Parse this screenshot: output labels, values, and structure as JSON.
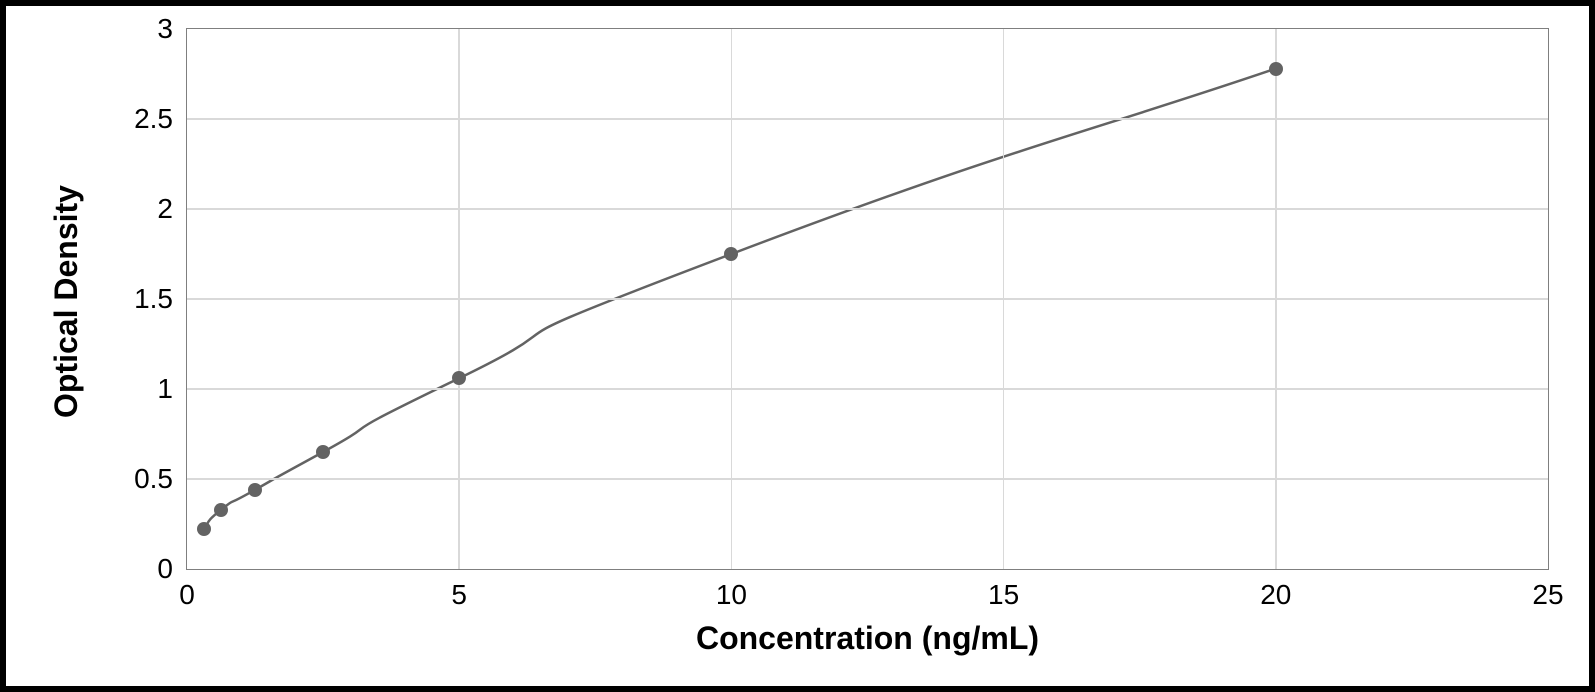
{
  "chart": {
    "type": "line",
    "xlabel": "Concentration (ng/mL)",
    "ylabel": "Optical Density",
    "label_fontsize": 32,
    "label_fontweight": 700,
    "tick_fontsize": 28,
    "background_color": "#ffffff",
    "border_color": "#7f7f7f",
    "grid_color": "#d9d9d9",
    "line_color": "#636363",
    "marker_color": "#636363",
    "marker_size": 14,
    "line_width": 2.5,
    "xlim": [
      0,
      25
    ],
    "ylim": [
      0,
      3
    ],
    "xtick_step": 5,
    "ytick_step": 0.5,
    "xticks": [
      0,
      5,
      10,
      15,
      20,
      25
    ],
    "yticks": [
      0,
      0.5,
      1,
      1.5,
      2,
      2.5,
      3
    ],
    "ytick_labels": [
      "0",
      "0.5",
      "1",
      "1.5",
      "2",
      "2.5",
      "3"
    ],
    "xtick_labels": [
      "0",
      "5",
      "10",
      "15",
      "20",
      "25"
    ],
    "series": {
      "x": [
        0.31,
        0.63,
        1.25,
        2.5,
        5,
        10,
        20
      ],
      "y": [
        0.22,
        0.33,
        0.44,
        0.65,
        1.06,
        1.75,
        2.78
      ]
    },
    "marker_style": "circle",
    "grid": true,
    "curve_control_scale": 0.35
  }
}
